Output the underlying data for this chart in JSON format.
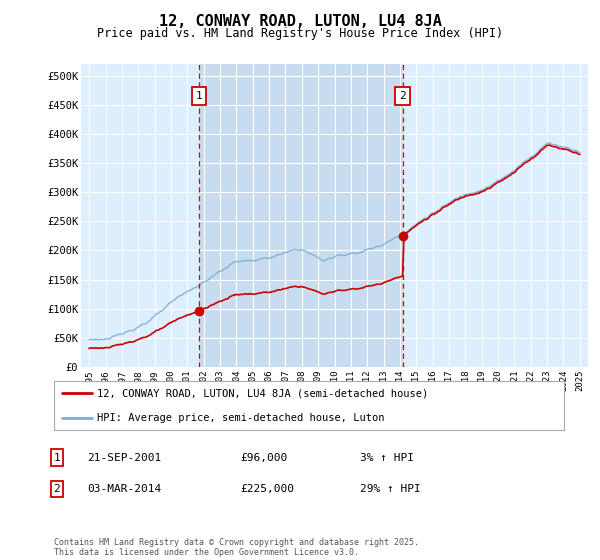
{
  "title": "12, CONWAY ROAD, LUTON, LU4 8JA",
  "subtitle": "Price paid vs. HM Land Registry's House Price Index (HPI)",
  "bg_color": "#ddeeff",
  "plot_bg_color": "#ddeeff",
  "shade_color": "#c8dcf0",
  "y_ticks": [
    0,
    50000,
    100000,
    150000,
    200000,
    250000,
    300000,
    350000,
    400000,
    450000,
    500000
  ],
  "y_tick_labels": [
    "£0",
    "£50K",
    "£100K",
    "£150K",
    "£200K",
    "£250K",
    "£300K",
    "£350K",
    "£400K",
    "£450K",
    "£500K"
  ],
  "ylim": [
    0,
    520000
  ],
  "x_start_year": 1995,
  "x_end_year": 2025,
  "sale1_date": 2001.72,
  "sale1_price": 96000,
  "sale2_date": 2014.17,
  "sale2_price": 225000,
  "legend_entry1": "12, CONWAY ROAD, LUTON, LU4 8JA (semi-detached house)",
  "legend_entry2": "HPI: Average price, semi-detached house, Luton",
  "annotation1_label": "1",
  "annotation1_date": "21-SEP-2001",
  "annotation1_price": "£96,000",
  "annotation1_pct": "3% ↑ HPI",
  "annotation2_label": "2",
  "annotation2_date": "03-MAR-2014",
  "annotation2_price": "£225,000",
  "annotation2_pct": "29% ↑ HPI",
  "footer": "Contains HM Land Registry data © Crown copyright and database right 2025.\nThis data is licensed under the Open Government Licence v3.0.",
  "line_color_red": "#cc0000",
  "line_color_blue": "#7aafd4",
  "dashed_red": "#cc0000"
}
